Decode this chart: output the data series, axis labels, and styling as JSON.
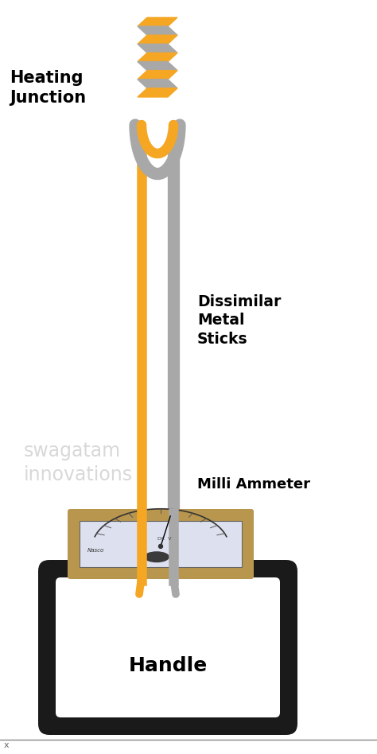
{
  "bg_color": "#ffffff",
  "orange_color": "#F5A623",
  "gray_color": "#A8A8A8",
  "dark_color": "#1a1a1a",
  "tan_color": "#B8964E",
  "watermark_color": "#CCCCCC",
  "watermark_text": "swagatam\ninnovations",
  "title_text": "Heating\nJunction",
  "dissimilar_text": "Dissimilar\nMetal\nSticks",
  "milliammeter_text": "Milli Ammeter",
  "handle_text": "Handle",
  "fig_width": 4.74,
  "fig_height": 9.48,
  "dpi": 100
}
